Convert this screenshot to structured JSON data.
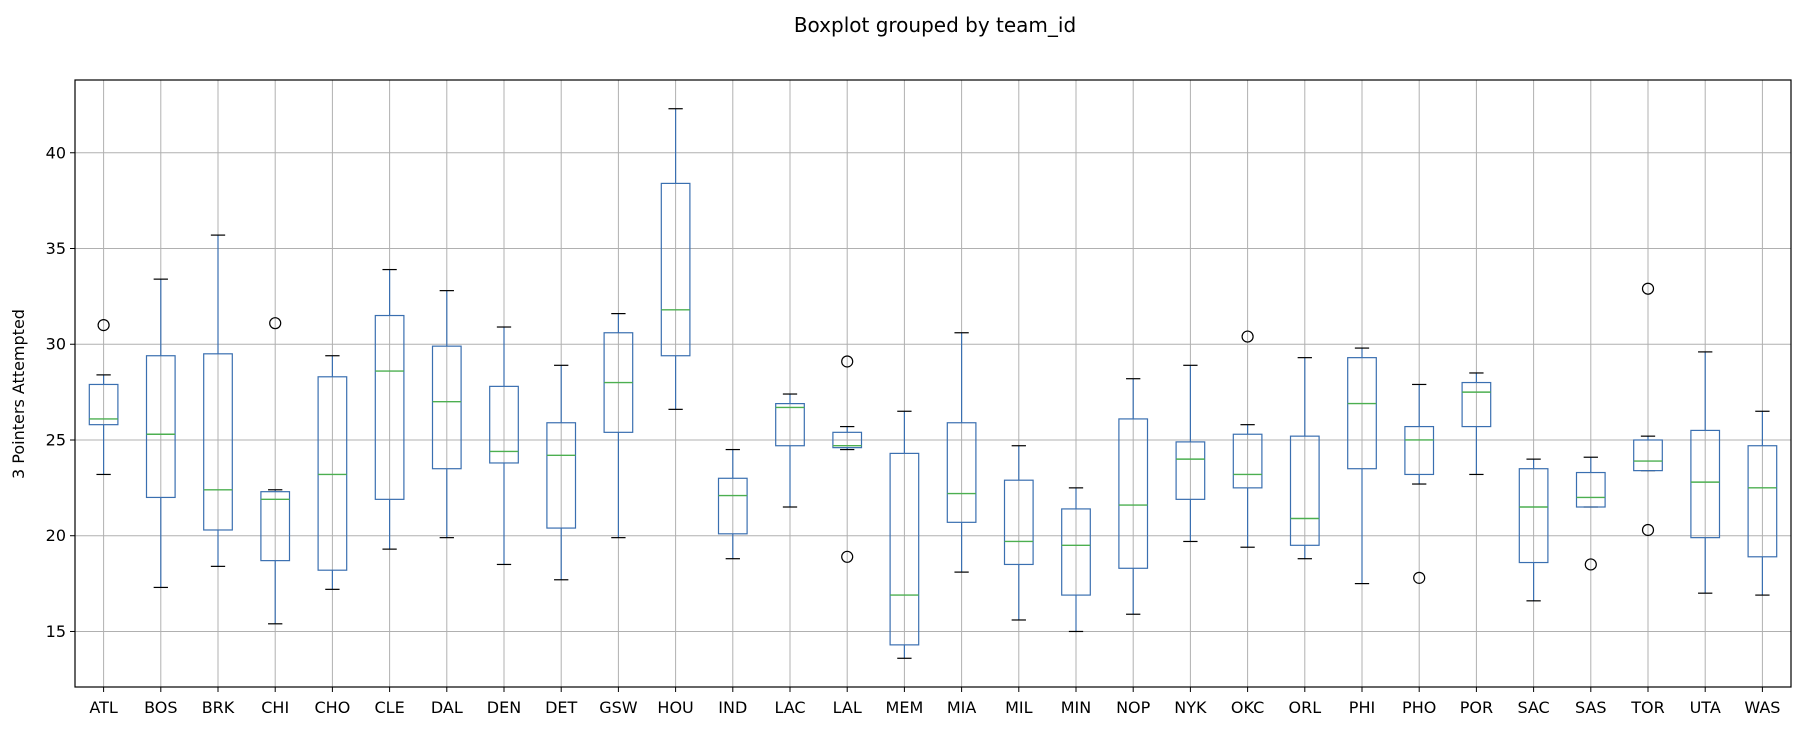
{
  "chart_data": {
    "type": "boxplot",
    "title": "Boxplot grouped by team_id",
    "xlabel": "",
    "ylabel": "3 Pointers Attempted",
    "ylim": [
      12.1,
      43.8
    ],
    "yticks": [
      15,
      20,
      25,
      30,
      35,
      40
    ],
    "grid": true,
    "colors": {
      "box": "#3a6fb0",
      "median": "#4caf50",
      "grid": "#b0b0b0",
      "axis": "#000000"
    },
    "categories": [
      "ATL",
      "BOS",
      "BRK",
      "CHI",
      "CHO",
      "CLE",
      "DAL",
      "DEN",
      "DET",
      "GSW",
      "HOU",
      "IND",
      "LAC",
      "LAL",
      "MEM",
      "MIA",
      "MIL",
      "MIN",
      "NOP",
      "NYK",
      "OKC",
      "ORL",
      "PHI",
      "PHO",
      "POR",
      "SAC",
      "SAS",
      "TOR",
      "UTA",
      "WAS"
    ],
    "boxes": [
      {
        "team": "ATL",
        "whislo": 23.2,
        "q1": 25.8,
        "med": 26.1,
        "q3": 27.9,
        "whishi": 28.4,
        "fliers": [
          31.0
        ]
      },
      {
        "team": "BOS",
        "whislo": 17.3,
        "q1": 22.0,
        "med": 25.3,
        "q3": 29.4,
        "whishi": 33.4,
        "fliers": []
      },
      {
        "team": "BRK",
        "whislo": 18.4,
        "q1": 20.3,
        "med": 22.4,
        "q3": 29.5,
        "whishi": 35.7,
        "fliers": []
      },
      {
        "team": "CHI",
        "whislo": 15.4,
        "q1": 18.7,
        "med": 21.9,
        "q3": 22.3,
        "whishi": 22.4,
        "fliers": [
          31.1
        ]
      },
      {
        "team": "CHO",
        "whislo": 17.2,
        "q1": 18.2,
        "med": 23.2,
        "q3": 28.3,
        "whishi": 29.4,
        "fliers": []
      },
      {
        "team": "CLE",
        "whislo": 19.3,
        "q1": 21.9,
        "med": 28.6,
        "q3": 31.5,
        "whishi": 33.9,
        "fliers": []
      },
      {
        "team": "DAL",
        "whislo": 19.9,
        "q1": 23.5,
        "med": 27.0,
        "q3": 29.9,
        "whishi": 32.8,
        "fliers": []
      },
      {
        "team": "DEN",
        "whislo": 18.5,
        "q1": 23.8,
        "med": 24.4,
        "q3": 27.8,
        "whishi": 30.9,
        "fliers": []
      },
      {
        "team": "DET",
        "whislo": 17.7,
        "q1": 20.4,
        "med": 24.2,
        "q3": 25.9,
        "whishi": 28.9,
        "fliers": []
      },
      {
        "team": "GSW",
        "whislo": 19.9,
        "q1": 25.4,
        "med": 28.0,
        "q3": 30.6,
        "whishi": 31.6,
        "fliers": []
      },
      {
        "team": "HOU",
        "whislo": 26.6,
        "q1": 29.4,
        "med": 31.8,
        "q3": 38.4,
        "whishi": 42.3,
        "fliers": []
      },
      {
        "team": "IND",
        "whislo": 18.8,
        "q1": 20.1,
        "med": 22.1,
        "q3": 23.0,
        "whishi": 24.5,
        "fliers": []
      },
      {
        "team": "LAC",
        "whislo": 21.5,
        "q1": 24.7,
        "med": 26.7,
        "q3": 26.9,
        "whishi": 27.4,
        "fliers": []
      },
      {
        "team": "LAL",
        "whislo": 24.5,
        "q1": 24.6,
        "med": 24.7,
        "q3": 25.4,
        "whishi": 25.7,
        "fliers": [
          29.1,
          18.9
        ]
      },
      {
        "team": "MEM",
        "whislo": 13.6,
        "q1": 14.3,
        "med": 16.9,
        "q3": 24.3,
        "whishi": 26.5,
        "fliers": []
      },
      {
        "team": "MIA",
        "whislo": 18.1,
        "q1": 20.7,
        "med": 22.2,
        "q3": 25.9,
        "whishi": 30.6,
        "fliers": []
      },
      {
        "team": "MIL",
        "whislo": 15.6,
        "q1": 18.5,
        "med": 19.7,
        "q3": 22.9,
        "whishi": 24.7,
        "fliers": []
      },
      {
        "team": "MIN",
        "whislo": 15.0,
        "q1": 16.9,
        "med": 19.5,
        "q3": 21.4,
        "whishi": 22.5,
        "fliers": []
      },
      {
        "team": "NOP",
        "whislo": 15.9,
        "q1": 18.3,
        "med": 21.6,
        "q3": 26.1,
        "whishi": 28.2,
        "fliers": []
      },
      {
        "team": "NYK",
        "whislo": 19.7,
        "q1": 21.9,
        "med": 24.0,
        "q3": 24.9,
        "whishi": 28.9,
        "fliers": []
      },
      {
        "team": "OKC",
        "whislo": 19.4,
        "q1": 22.5,
        "med": 23.2,
        "q3": 25.3,
        "whishi": 25.8,
        "fliers": [
          30.4
        ]
      },
      {
        "team": "ORL",
        "whislo": 18.8,
        "q1": 19.5,
        "med": 20.9,
        "q3": 25.2,
        "whishi": 29.3,
        "fliers": []
      },
      {
        "team": "PHI",
        "whislo": 17.5,
        "q1": 23.5,
        "med": 26.9,
        "q3": 29.3,
        "whishi": 29.8,
        "fliers": []
      },
      {
        "team": "PHO",
        "whislo": 22.7,
        "q1": 23.2,
        "med": 25.0,
        "q3": 25.7,
        "whishi": 27.9,
        "fliers": [
          17.8
        ]
      },
      {
        "team": "POR",
        "whislo": 23.2,
        "q1": 25.7,
        "med": 27.5,
        "q3": 28.0,
        "whishi": 28.5,
        "fliers": []
      },
      {
        "team": "SAC",
        "whislo": 16.6,
        "q1": 18.6,
        "med": 21.5,
        "q3": 23.5,
        "whishi": 24.0,
        "fliers": []
      },
      {
        "team": "SAS",
        "whislo": 21.5,
        "q1": 21.5,
        "med": 22.0,
        "q3": 23.3,
        "whishi": 24.1,
        "fliers": [
          18.5
        ]
      },
      {
        "team": "TOR",
        "whislo": 23.4,
        "q1": 23.4,
        "med": 23.9,
        "q3": 25.0,
        "whishi": 25.2,
        "fliers": [
          32.9,
          20.3
        ]
      },
      {
        "team": "UTA",
        "whislo": 17.0,
        "q1": 19.9,
        "med": 22.8,
        "q3": 25.5,
        "whishi": 29.6,
        "fliers": []
      },
      {
        "team": "WAS",
        "whislo": 16.9,
        "q1": 18.9,
        "med": 22.5,
        "q3": 24.7,
        "whishi": 26.5,
        "fliers": []
      }
    ]
  }
}
